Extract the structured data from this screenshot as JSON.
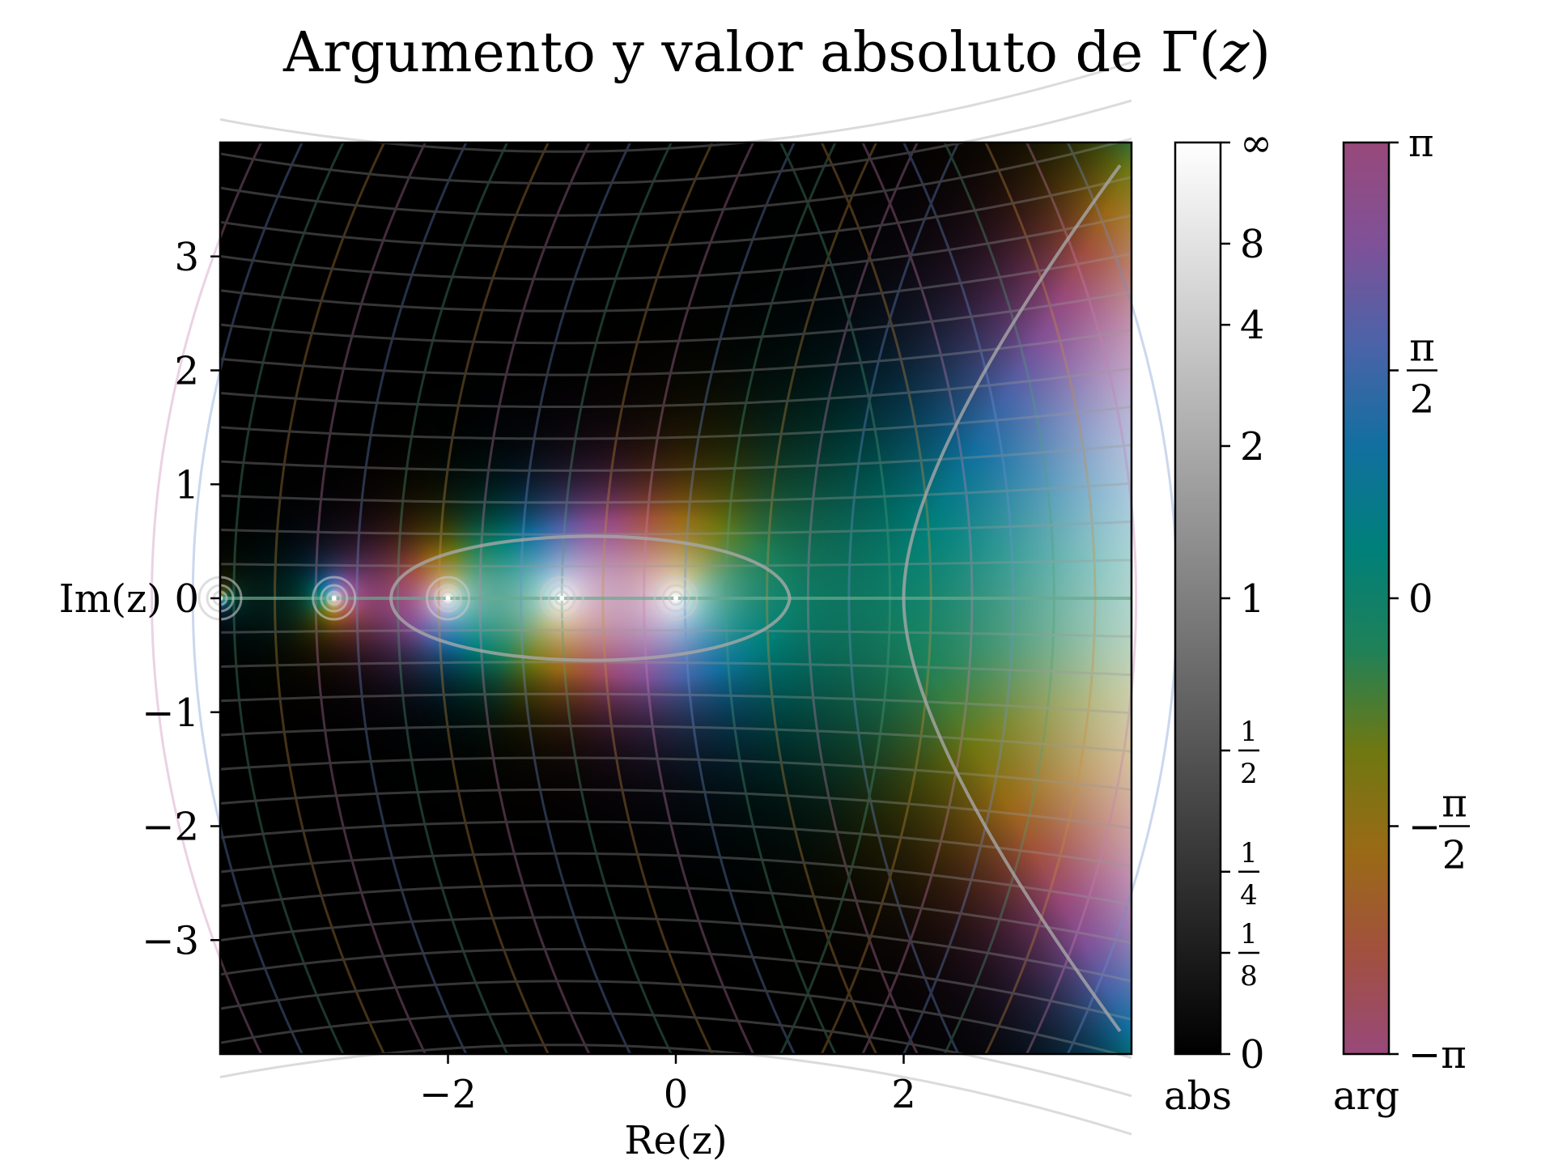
{
  "title": "Argumento y valor absoluto de Γ(z)",
  "chart_data": {
    "type": "heatmap",
    "function": "Γ(z)",
    "xlabel": "Re(z)",
    "ylabel": "Im(z)",
    "xlim": [
      -4,
      4
    ],
    "ylim": [
      -4,
      4
    ],
    "xticks": [
      -2,
      0,
      2
    ],
    "xtick_labels": [
      "−2",
      "0",
      "2"
    ],
    "yticks": [
      3,
      2,
      1,
      0,
      -1,
      -2,
      -3
    ],
    "ytick_labels": [
      "3",
      "2",
      "1",
      "0",
      "−1",
      "−2",
      "−3"
    ],
    "poles": [
      0,
      -1,
      -2,
      -3,
      -4
    ],
    "colorbars": [
      {
        "name": "abs",
        "label": "abs",
        "colormap": "gray",
        "ticks": [
          {
            "value": "∞",
            "fraction": 1.0
          },
          {
            "value": "8",
            "fraction": 0.889
          },
          {
            "value": "4",
            "fraction": 0.8
          },
          {
            "value": "2",
            "fraction": 0.667
          },
          {
            "value": "1",
            "fraction": 0.5
          },
          {
            "value": "1/2",
            "fraction": 0.333
          },
          {
            "value": "1/4",
            "fraction": 0.2
          },
          {
            "value": "1/8",
            "fraction": 0.111
          },
          {
            "value": "0",
            "fraction": 0.0
          }
        ]
      },
      {
        "name": "arg",
        "label": "arg",
        "colormap": "cyclic",
        "colors": [
          "#98497a",
          "#a2503f",
          "#9a6a16",
          "#6f7812",
          "#1f8158",
          "#00807a",
          "#126fa0",
          "#4b63a8",
          "#7f5198",
          "#98497a"
        ],
        "ticks": [
          {
            "value": "π",
            "fraction": 1.0
          },
          {
            "value": "π/2",
            "fraction": 0.75
          },
          {
            "value": "0",
            "fraction": 0.5
          },
          {
            "value": "−π/2",
            "fraction": 0.25
          },
          {
            "value": "−π",
            "fraction": 0.0
          }
        ]
      }
    ]
  }
}
